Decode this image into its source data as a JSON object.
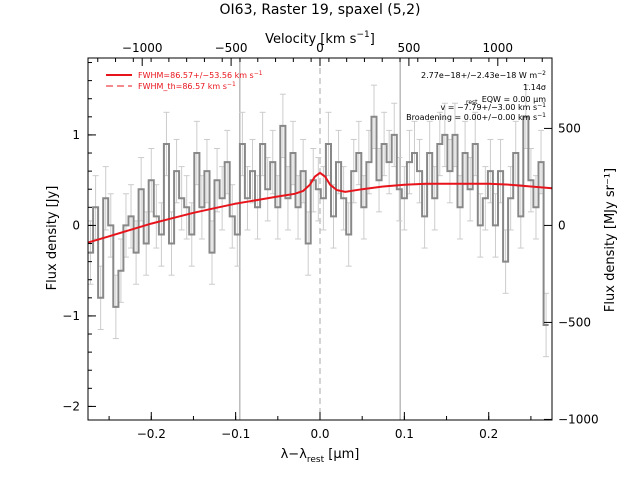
{
  "chart_data": {
    "type": "line",
    "title": "OI63, Raster 19, spaxel (5,2)",
    "xlabel_main": "λ−λ",
    "xlabel_sub": "rest",
    "xlabel_unit": " [μm]",
    "ylabel_left": "Flux density [Jy]",
    "ylabel_right": "Flux density [MJy sr⁻¹]",
    "top_axis_label_main": "Velocity [km s",
    "top_axis_label_sup": "−1",
    "top_axis_label_end": "]",
    "xlim": [
      -0.275,
      0.275
    ],
    "ylim": [
      -2.15,
      1.85
    ],
    "x_ticks": [
      -0.2,
      -0.1,
      0.0,
      0.1,
      0.2
    ],
    "x_tick_labels": [
      "−0.2",
      "−0.1",
      "0.0",
      "0.1",
      "0.2"
    ],
    "y_ticks": [
      -2,
      -1,
      0,
      1
    ],
    "y_tick_labels": [
      "−2",
      "−1",
      "0",
      "1"
    ],
    "top_ticks_velocity": [
      -1000,
      -500,
      0,
      500,
      1000
    ],
    "top_tick_labels": [
      "−1000",
      "−500",
      "0",
      "500",
      "1000"
    ],
    "right_ticks": [
      -1000,
      -500,
      0,
      500
    ],
    "right_tick_labels": [
      "−1000",
      "−500",
      "0",
      "500"
    ],
    "vertical_lines_x": [
      -0.095,
      0.0,
      0.095
    ],
    "legend": [
      {
        "label": "FWHM=86.57+/−53.56 km s",
        "sup": "−1",
        "style": "solid",
        "color": "#e8141c"
      },
      {
        "label": "FWHM_th=86.57 km s",
        "sup": "−1",
        "style": "dashed",
        "color": "#e8141c"
      }
    ],
    "annotations": [
      "2.77e−18+/−2.43e−18 W m",
      "1.14σ",
      "EQW = 0.00 μm",
      "v = −7.79+/−3.00 km s",
      "Broadening = 0.00+/−0.00 km s"
    ],
    "annotation_sups": [
      "−2",
      "",
      "",
      "−1",
      "−1"
    ],
    "annotation_subs": [
      "",
      "",
      "rest",
      "",
      ""
    ],
    "series": [
      {
        "kind": "data-steps",
        "color": "#888888",
        "x": [
          -0.272,
          -0.266,
          -0.26,
          -0.254,
          -0.248,
          -0.242,
          -0.236,
          -0.23,
          -0.224,
          -0.218,
          -0.212,
          -0.206,
          -0.2,
          -0.194,
          -0.188,
          -0.182,
          -0.176,
          -0.17,
          -0.164,
          -0.158,
          -0.152,
          -0.146,
          -0.14,
          -0.134,
          -0.128,
          -0.122,
          -0.116,
          -0.11,
          -0.104,
          -0.098,
          -0.092,
          -0.086,
          -0.08,
          -0.074,
          -0.068,
          -0.062,
          -0.056,
          -0.05,
          -0.044,
          -0.038,
          -0.032,
          -0.026,
          -0.02,
          -0.014,
          -0.008,
          -0.002,
          0.004,
          0.01,
          0.016,
          0.022,
          0.028,
          0.034,
          0.04,
          0.046,
          0.052,
          0.058,
          0.064,
          0.07,
          0.076,
          0.082,
          0.088,
          0.094,
          0.1,
          0.106,
          0.112,
          0.118,
          0.124,
          0.13,
          0.136,
          0.142,
          0.148,
          0.154,
          0.16,
          0.166,
          0.172,
          0.178,
          0.184,
          0.19,
          0.196,
          0.202,
          0.208,
          0.214,
          0.22,
          0.226,
          0.232,
          0.238,
          0.244,
          0.25,
          0.256,
          0.262,
          0.268
        ],
        "y": [
          -0.3,
          0.2,
          -0.8,
          0.3,
          0.0,
          -0.9,
          -0.5,
          0.0,
          0.1,
          -0.3,
          0.4,
          -0.2,
          0.5,
          0.1,
          -0.1,
          0.9,
          -0.2,
          0.6,
          0.3,
          0.2,
          -0.1,
          0.8,
          0.2,
          0.6,
          -0.3,
          0.5,
          0.3,
          0.7,
          0.1,
          -0.1,
          0.9,
          0.3,
          0.6,
          0.2,
          0.9,
          0.4,
          0.7,
          0.2,
          1.1,
          0.3,
          0.8,
          0.2,
          0.6,
          -0.2,
          0.5,
          0.4,
          0.3,
          0.9,
          0.1,
          0.7,
          0.3,
          -0.1,
          0.6,
          0.8,
          0.2,
          0.7,
          1.2,
          0.5,
          0.9,
          0.7,
          1.0,
          0.4,
          0.3,
          0.7,
          0.8,
          0.6,
          0.1,
          0.8,
          0.3,
          0.9,
          1.0,
          0.6,
          1.0,
          0.2,
          0.8,
          0.4,
          0.9,
          0.0,
          0.3,
          0.6,
          0.0,
          0.6,
          -0.4,
          0.3,
          0.8,
          0.1,
          1.2,
          0.5,
          0.2,
          0.7,
          -1.1
        ],
        "err": 0.35
      },
      {
        "kind": "fit",
        "color": "#e8141c",
        "x": [
          -0.275,
          -0.25,
          -0.225,
          -0.2,
          -0.175,
          -0.15,
          -0.125,
          -0.1,
          -0.075,
          -0.05,
          -0.03,
          -0.02,
          -0.012,
          -0.006,
          0.0,
          0.006,
          0.012,
          0.02,
          0.03,
          0.05,
          0.075,
          0.1,
          0.125,
          0.15,
          0.175,
          0.2,
          0.225,
          0.25,
          0.275
        ],
        "y": [
          -0.19,
          -0.12,
          -0.05,
          0.02,
          0.08,
          0.14,
          0.19,
          0.24,
          0.28,
          0.32,
          0.35,
          0.38,
          0.45,
          0.54,
          0.58,
          0.54,
          0.45,
          0.39,
          0.37,
          0.4,
          0.43,
          0.45,
          0.46,
          0.46,
          0.46,
          0.46,
          0.45,
          0.43,
          0.41
        ]
      }
    ]
  }
}
